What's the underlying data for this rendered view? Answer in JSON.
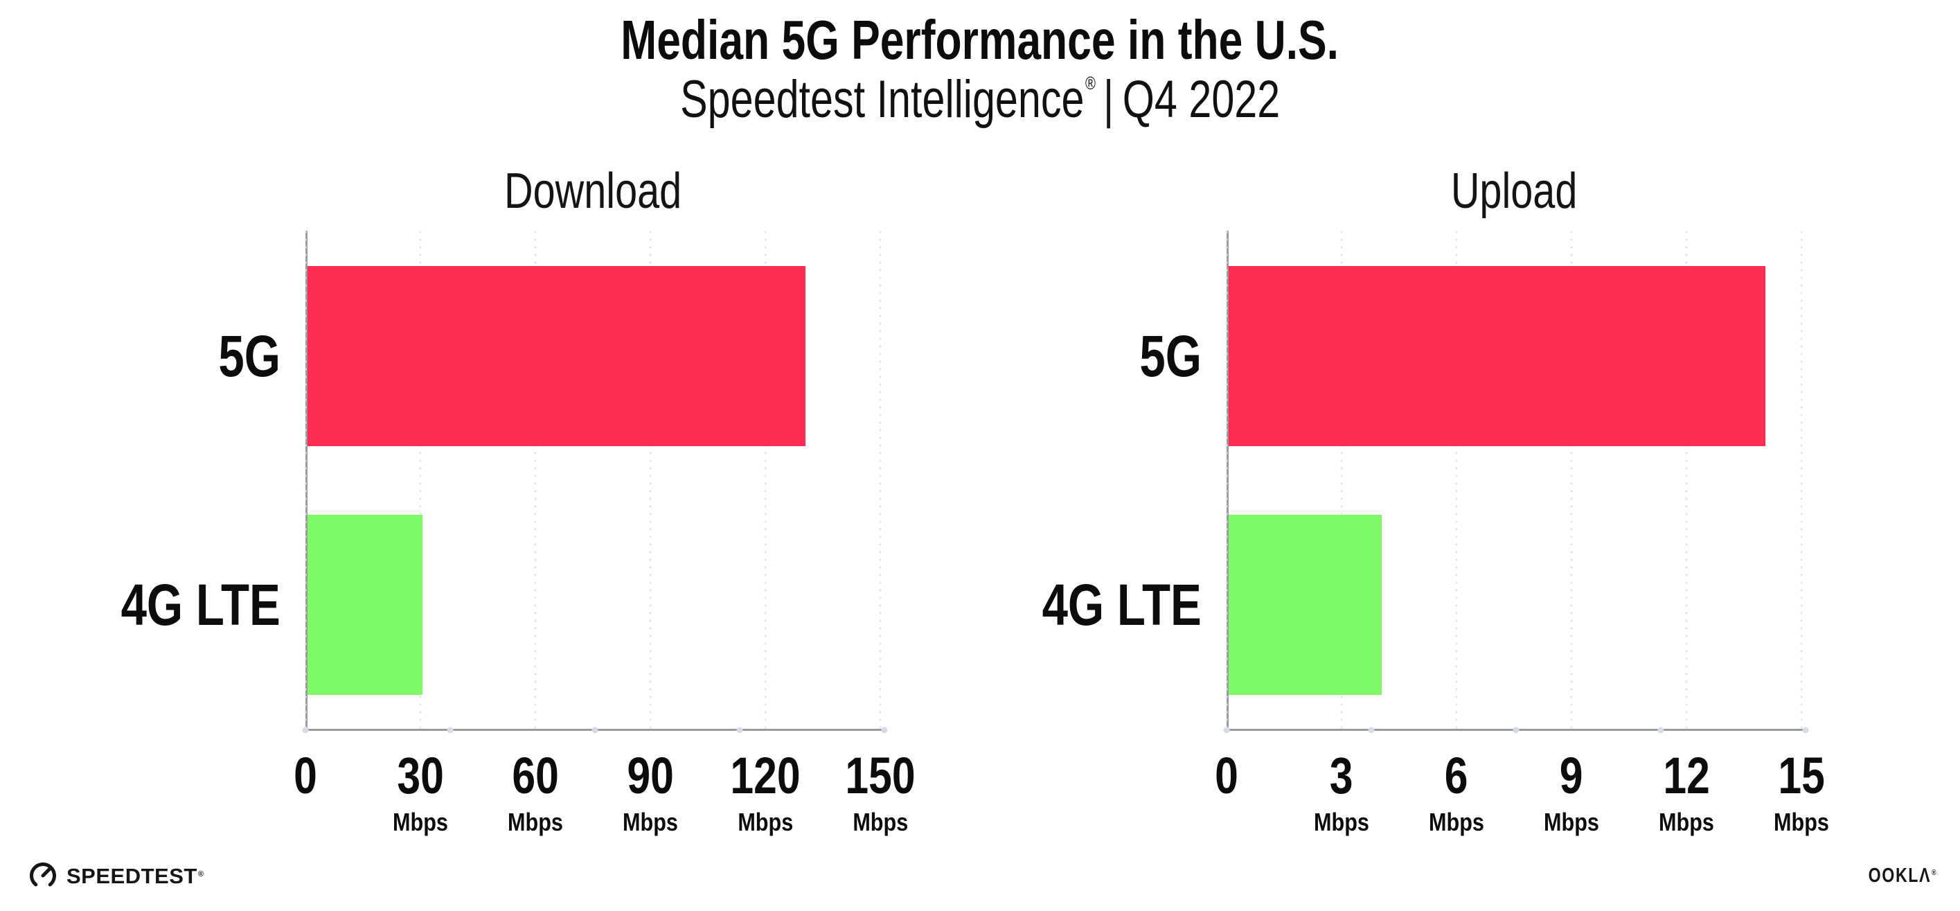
{
  "header": {
    "title": "Median 5G Performance in the U.S.",
    "subtitle_brand": "Speedtest Intelligence",
    "subtitle_reg_mark": "®",
    "subtitle_separator": "|",
    "subtitle_period": "Q4 2022"
  },
  "chart_data": [
    {
      "type": "bar",
      "orientation": "horizontal",
      "title": "Download",
      "categories": [
        "5G",
        "4G LTE"
      ],
      "values": [
        130,
        30
      ],
      "xlabel": "",
      "ylabel": "",
      "xlim": [
        0,
        150
      ],
      "xticks": [
        0,
        30,
        60,
        90,
        120,
        150
      ],
      "tick_unit_label": "Mbps",
      "bar_colors": [
        "#ff2d55",
        "#80fa69"
      ],
      "grid": "dotted-vertical",
      "legend": "none"
    },
    {
      "type": "bar",
      "orientation": "horizontal",
      "title": "Upload",
      "categories": [
        "5G",
        "4G LTE"
      ],
      "values": [
        14,
        4
      ],
      "xlabel": "",
      "ylabel": "",
      "xlim": [
        0,
        15
      ],
      "xticks": [
        0,
        3,
        6,
        9,
        12,
        15
      ],
      "tick_unit_label": "Mbps",
      "bar_colors": [
        "#ff2d55",
        "#80fa69"
      ],
      "grid": "dotted-vertical",
      "legend": "none"
    }
  ],
  "footer": {
    "speedtest_wordmark": "SPEEDTEST",
    "speedtest_reg_mark": "®",
    "ookla_wordmark": "OOKLΛ",
    "ookla_reg_mark": "®",
    "speedtest_icon": "speedtest-gauge-icon"
  },
  "colors": {
    "bar_5g": "#ff2d55",
    "bar_4g_lte": "#80fa69",
    "axis_line": "#9b9b9b",
    "grid_dot": "#e3e4ef",
    "axis_marker_dot": "#d7dbe9",
    "text": "#0c0c0c",
    "background": "#ffffff"
  }
}
